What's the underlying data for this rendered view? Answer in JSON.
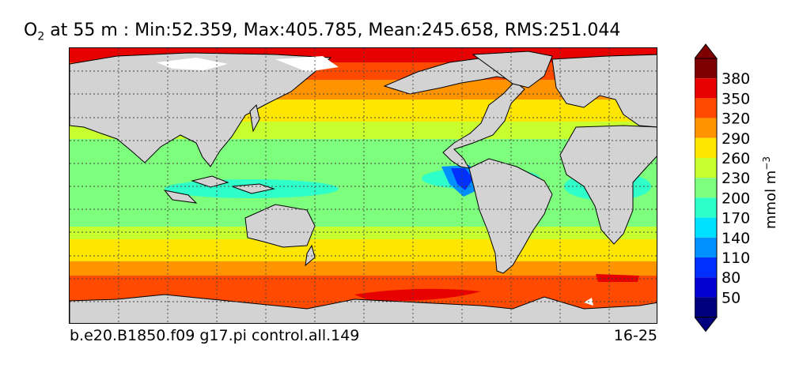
{
  "title": {
    "species": "O",
    "subscript": "2",
    "rest": " at 55 m : Min:52.359, Max:405.785, Mean:245.658, RMS:251.044"
  },
  "footer": {
    "case_name": "b.e20.B1850.f09 g17.pi control.all.149",
    "years": "16-25"
  },
  "colorbar": {
    "label": "mmol m",
    "label_exponent": "−3",
    "ticks": [
      "50",
      "80",
      "110",
      "140",
      "170",
      "200",
      "230",
      "260",
      "290",
      "320",
      "350",
      "380"
    ],
    "colors": [
      "#00007f",
      "#0000d0",
      "#0030ff",
      "#0090ff",
      "#00e0ff",
      "#2fffc8",
      "#7dff7d",
      "#c8ff2f",
      "#ffe600",
      "#ff9400",
      "#ff4a00",
      "#e60000",
      "#7f0000"
    ],
    "extend": "both"
  },
  "map": {
    "land_color": "#d3d3d3",
    "missing_color": "#ffffff",
    "graticule": "dotted"
  }
}
